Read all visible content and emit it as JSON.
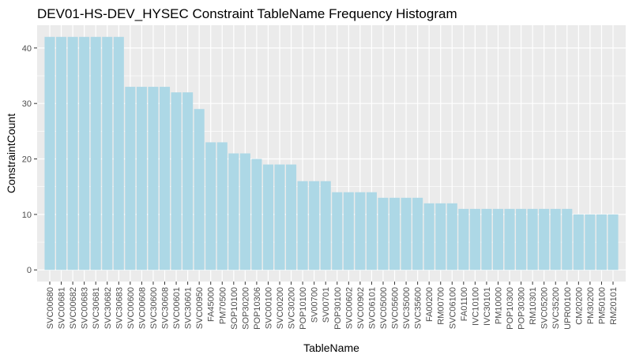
{
  "chart_data": {
    "type": "bar",
    "title": "DEV01-HS-DEV_HYSEC Constraint TableName Frequency Histogram",
    "xlabel": "TableName",
    "ylabel": "ConstraintCount",
    "ylim": [
      -2.1,
      44.1
    ],
    "yticks": [
      0,
      10,
      20,
      30,
      40
    ],
    "grid": true,
    "legend": "none",
    "colors": {
      "bar": "#add8e6",
      "panel": "#ebebeb",
      "grid": "#ffffff",
      "text": "#4d4d4d"
    },
    "categories": [
      "SVC00680",
      "SVC00681",
      "SVC00682",
      "SVC00683",
      "SVC30681",
      "SVC30682",
      "SVC30683",
      "SVC00600",
      "SVC00608",
      "SVC30600",
      "SVC30608",
      "SVC00601",
      "SVC30601",
      "SVC00950",
      "FA45000",
      "PM70500",
      "SOP10100",
      "SOP30200",
      "POP10306",
      "SVC00100",
      "SVC00200",
      "SVC30200",
      "POP10100",
      "SV00700",
      "SV00701",
      "POP30100",
      "SVC00602",
      "SVC00902",
      "SVC06101",
      "SVC05000",
      "SVC05600",
      "SVC35000",
      "SVC35600",
      "FA00200",
      "RM00700",
      "SVC06100",
      "FA01100",
      "IVC10100",
      "IVC30101",
      "PM10000",
      "POP10300",
      "POP30300",
      "RM10301",
      "SVC05200",
      "SVC35200",
      "UPR00100",
      "CM20200",
      "PM30200",
      "PM50100",
      "RM20101"
    ],
    "values": [
      42,
      42,
      42,
      42,
      42,
      42,
      42,
      33,
      33,
      33,
      33,
      32,
      32,
      29,
      23,
      23,
      21,
      21,
      20,
      19,
      19,
      19,
      16,
      16,
      16,
      14,
      14,
      14,
      14,
      13,
      13,
      13,
      13,
      12,
      12,
      12,
      11,
      11,
      11,
      11,
      11,
      11,
      11,
      11,
      11,
      11,
      10,
      10,
      10,
      10
    ]
  }
}
